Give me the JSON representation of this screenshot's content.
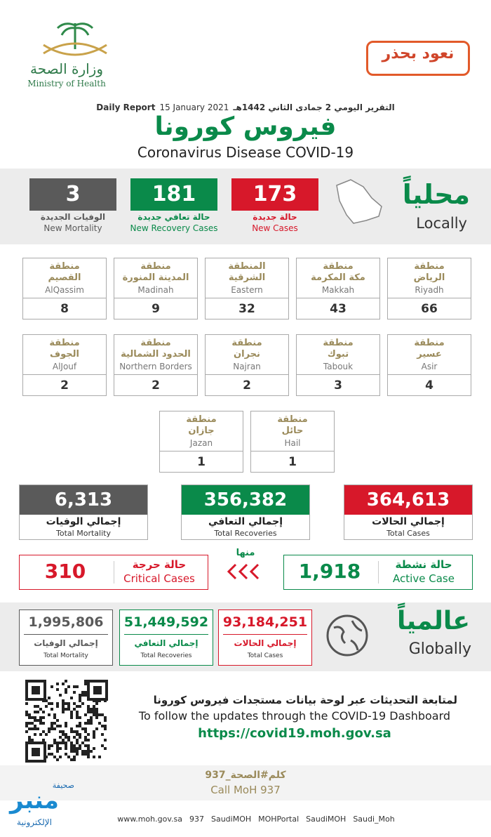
{
  "header": {
    "ministry_ar": "وزارة الصحة",
    "ministry_en": "Ministry of Health",
    "campaign": "نعود بحذر"
  },
  "report": {
    "date_ar": "التقرير اليومي 2 جمادى الثاني 1442هـ",
    "date_en": "15 January 2021",
    "label_en": "Daily Report",
    "title_ar": "فيروس كورونا",
    "title_en": "Coronavirus Disease COVID-19"
  },
  "local": {
    "title_ar": "محلياً",
    "title_en": "Locally",
    "stats": [
      {
        "value": "173",
        "label_ar": "حالة جديدة",
        "label_en": "New Cases",
        "color": "#d7182a"
      },
      {
        "value": "181",
        "label_ar": "حالة تعافي جديدة",
        "label_en": "New Recovery Cases",
        "color": "#0a8a4a"
      },
      {
        "value": "3",
        "label_ar": "الوفيات الجديدة",
        "label_en": "New Mortality",
        "color": "#5a5a5a"
      }
    ]
  },
  "regions": [
    {
      "prefix": "منطقة",
      "name_ar": "الرياض",
      "name_en": "Riyadh",
      "value": 66
    },
    {
      "prefix": "منطقة",
      "name_ar": "مكة المكرمة",
      "name_en": "Makkah",
      "value": 43
    },
    {
      "prefix": "المنطقة",
      "name_ar": "الشرقية",
      "name_en": "Eastern",
      "value": 32
    },
    {
      "prefix": "منطقة",
      "name_ar": "المدينة المنورة",
      "name_en": "Madinah",
      "value": 9
    },
    {
      "prefix": "منطقة",
      "name_ar": "القصيم",
      "name_en": "AlQassim",
      "value": 8
    },
    {
      "prefix": "منطقة",
      "name_ar": "عسير",
      "name_en": "Asir",
      "value": 4
    },
    {
      "prefix": "منطقة",
      "name_ar": "تبوك",
      "name_en": "Tabouk",
      "value": 3
    },
    {
      "prefix": "منطقة",
      "name_ar": "نجران",
      "name_en": "Najran",
      "value": 2
    },
    {
      "prefix": "منطقة",
      "name_ar": "الحدود الشمالية",
      "name_en": "Northern Borders",
      "value": 2
    },
    {
      "prefix": "منطقة",
      "name_ar": "الجوف",
      "name_en": "AlJouf",
      "value": 2
    },
    {
      "prefix": "منطقة",
      "name_ar": "حائل",
      "name_en": "Hail",
      "value": 1
    },
    {
      "prefix": "منطقة",
      "name_ar": "جازان",
      "name_en": "Jazan",
      "value": 1
    }
  ],
  "totals": [
    {
      "value": "364,613",
      "label_ar": "إجمالي الحالات",
      "label_en": "Total Cases",
      "color": "#d7182a"
    },
    {
      "value": "356,382",
      "label_ar": "إجمالي التعافي",
      "label_en": "Total Recoveries",
      "color": "#0a8a4a"
    },
    {
      "value": "6,313",
      "label_ar": "إجمالي الوفيات",
      "label_en": "Total Mortality",
      "color": "#5a5a5a"
    }
  ],
  "of_which": "منها",
  "active": {
    "value": "1,918",
    "label_ar": "حالة نشطة",
    "label_en": "Active Case",
    "color": "#0a8a4a"
  },
  "critical": {
    "value": "310",
    "label_ar": "حالة حرجة",
    "label_en": "Critical Cases",
    "color": "#d7182a"
  },
  "global": {
    "title_ar": "عالمياً",
    "title_en": "Globally",
    "stats": [
      {
        "value": "93,184,251",
        "label_ar": "إجمالي الحالات",
        "label_en": "Total Cases",
        "color": "#d7182a"
      },
      {
        "value": "51,449,592",
        "label_ar": "إجمالي التعافي",
        "label_en": "Total Recoveries",
        "color": "#0a8a4a"
      },
      {
        "value": "1,995,806",
        "label_ar": "إجمالي الوفيات",
        "label_en": "Total Mortality",
        "color": "#5a5a5a"
      }
    ]
  },
  "follow": {
    "text_ar": "لمتابعة التحديثات عبر لوحة بيانات مستجدات فيروس كورونا",
    "text_en": "To follow the updates through the COVID-19 Dashboard",
    "url": "https://covid19.moh.gov.sa"
  },
  "call": {
    "text_ar": "كلم#الصحة_937",
    "text_en": "Call MoH 937"
  },
  "social": [
    "www.moh.gov.sa",
    "937",
    "SaudiMOH",
    "MOHPortal",
    "SaudiMOH",
    "Saudi_Moh"
  ],
  "watermark": {
    "top": "صحيفة",
    "main": "منبر",
    "bottom": "الإلكترونية"
  }
}
